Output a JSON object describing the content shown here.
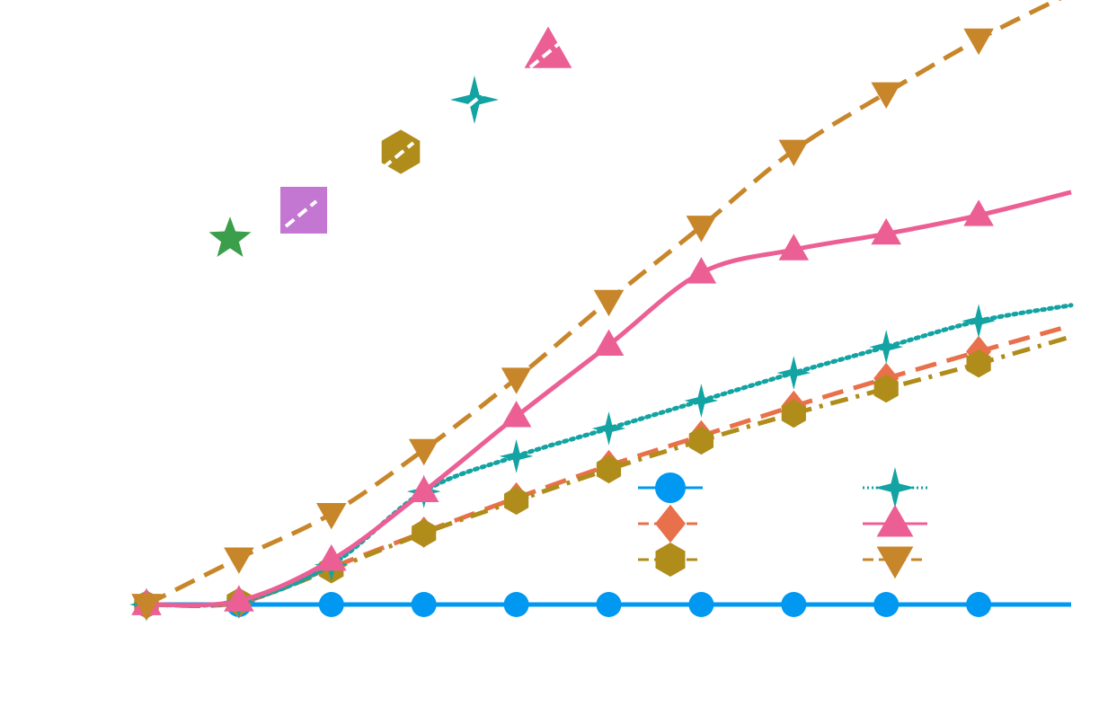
{
  "chart_data": {
    "type": "line",
    "title": "",
    "xlabel": "",
    "ylabel": "",
    "grid": false,
    "xlim": [
      0,
      10
    ],
    "ylim": [
      -0.9,
      6.5
    ],
    "x": [
      0,
      1,
      2,
      3,
      4,
      5,
      6,
      7,
      8,
      9,
      10
    ],
    "series": [
      {
        "key": "s1",
        "color": "#0098f0",
        "marker": "circle",
        "dash": "solid",
        "values": [
          0,
          0,
          0,
          0,
          0,
          0,
          0,
          0,
          0,
          0,
          0
        ]
      },
      {
        "key": "s2",
        "color": "#e8704a",
        "marker": "diamond",
        "dash": "dashed",
        "values": [
          0,
          0.02,
          0.4,
          0.78,
          1.15,
          1.5,
          1.82,
          2.14,
          2.44,
          2.73,
          3.01
        ]
      },
      {
        "key": "s3",
        "color": "#b08c1a",
        "marker": "hexagon",
        "dash": "dashdot",
        "values": [
          0,
          0.03,
          0.38,
          0.77,
          1.12,
          1.46,
          1.77,
          2.06,
          2.33,
          2.6,
          2.89
        ]
      },
      {
        "key": "s4",
        "color": "#13a3a3",
        "marker": "star4",
        "dash": "dotted",
        "values": [
          0,
          0.03,
          0.43,
          1.22,
          1.6,
          1.9,
          2.2,
          2.5,
          2.78,
          3.06,
          3.23
        ]
      },
      {
        "key": "s5",
        "color": "#ec5f95",
        "marker": "triangle-up",
        "dash": "solid",
        "values": [
          0,
          0.04,
          0.48,
          1.22,
          2.03,
          2.8,
          3.58,
          3.83,
          4.0,
          4.2,
          4.45
        ]
      },
      {
        "key": "s6",
        "color": "#c8862a",
        "marker": "triangle-down",
        "dash": "dashed",
        "values": [
          0,
          0.5,
          0.98,
          1.67,
          2.44,
          3.28,
          4.08,
          4.9,
          5.52,
          6.1,
          6.6
        ]
      }
    ],
    "legend": {
      "placement": "lower-right",
      "columns": 2,
      "entries": [
        "s1",
        "s2",
        "s3",
        "s4",
        "s5",
        "s6"
      ]
    },
    "annotations": {
      "marker_key": [
        {
          "marker": "star5",
          "color": "#3a9e4a"
        },
        {
          "marker": "square",
          "color": "#c477d2"
        },
        {
          "marker": "hexagon",
          "color": "#b08c1a"
        },
        {
          "marker": "star4",
          "color": "#13a3a3"
        },
        {
          "marker": "triangle-up",
          "color": "#ec5f95"
        }
      ]
    }
  }
}
